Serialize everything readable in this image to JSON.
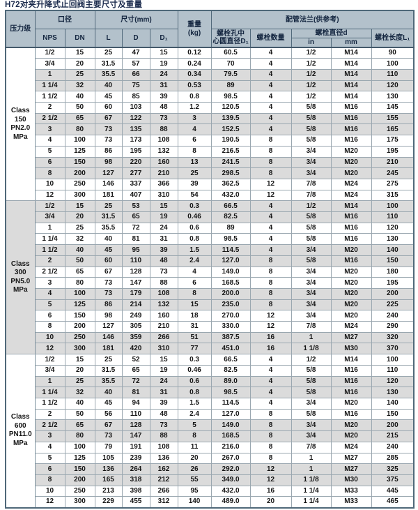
{
  "title": "H72对夹升降式止回阀主要尺寸及重量",
  "colors": {
    "title_text": "#1a2a4c",
    "header_bg": "#b3c1cb",
    "header_text": "#13253f",
    "row_stripe": "#dbdbdb",
    "row_plain": "#ffffff",
    "grid_line": "#9aa7b0",
    "outer_border": "#4f6879"
  },
  "table": {
    "header": {
      "pressure_class": "压力级",
      "bore_group": "口径",
      "nps": "NPS",
      "dn": "DN",
      "dimensions_group": "尺寸(mm)",
      "l": "L",
      "d": "D",
      "d1": "D₁",
      "weight_line1": "重量",
      "weight_line2": "(kg)",
      "flange_group": "配管法兰(供参考)",
      "bolt_circle_line1": "螺栓孔中",
      "bolt_circle_line2": "心圆直径D₁",
      "bolt_qty": "螺栓数量",
      "bolt_dia_group": "螺栓直径d",
      "unit_in": "in",
      "unit_mm": "mm",
      "bolt_length": "螺栓长度L₁"
    },
    "sections": [
      {
        "pressure_class_lines": [
          "Class",
          "150",
          "PN2.0",
          "MPa"
        ],
        "rows": [
          [
            "1/2",
            "15",
            "25",
            "47",
            "15",
            "0.12",
            "60.5",
            "4",
            "1/2",
            "M14",
            "90"
          ],
          [
            "3/4",
            "20",
            "31.5",
            "57",
            "19",
            "0.24",
            "70",
            "4",
            "1/2",
            "M14",
            "100"
          ],
          [
            "1",
            "25",
            "35.5",
            "66",
            "24",
            "0.34",
            "79.5",
            "4",
            "1/2",
            "M14",
            "110"
          ],
          [
            "1 1/4",
            "32",
            "40",
            "75",
            "31",
            "0.53",
            "89",
            "4",
            "1/2",
            "M14",
            "120"
          ],
          [
            "1 1/2",
            "40",
            "45",
            "85",
            "39",
            "0.8",
            "98.5",
            "4",
            "1/2",
            "M14",
            "130"
          ],
          [
            "2",
            "50",
            "60",
            "103",
            "48",
            "1.2",
            "120.5",
            "4",
            "5/8",
            "M16",
            "145"
          ],
          [
            "2 1/2",
            "65",
            "67",
            "122",
            "73",
            "3",
            "139.5",
            "4",
            "5/8",
            "M16",
            "155"
          ],
          [
            "3",
            "80",
            "73",
            "135",
            "88",
            "4",
            "152.5",
            "4",
            "5/8",
            "M16",
            "165"
          ],
          [
            "4",
            "100",
            "73",
            "173",
            "108",
            "6",
            "190.5",
            "8",
            "5/8",
            "M16",
            "175"
          ],
          [
            "5",
            "125",
            "86",
            "195",
            "132",
            "8",
            "216.5",
            "8",
            "3/4",
            "M20",
            "195"
          ],
          [
            "6",
            "150",
            "98",
            "220",
            "160",
            "13",
            "241.5",
            "8",
            "3/4",
            "M20",
            "210"
          ],
          [
            "8",
            "200",
            "127",
            "277",
            "210",
            "25",
            "298.5",
            "8",
            "3/4",
            "M20",
            "245"
          ],
          [
            "10",
            "250",
            "146",
            "337",
            "366",
            "39",
            "362.5",
            "12",
            "7/8",
            "M24",
            "275"
          ],
          [
            "12",
            "300",
            "181",
            "407",
            "310",
            "54",
            "432.0",
            "12",
            "7/8",
            "M24",
            "315"
          ]
        ]
      },
      {
        "pressure_class_lines": [
          "Class",
          "300",
          "PN5.0",
          "MPa"
        ],
        "rows": [
          [
            "1/2",
            "15",
            "25",
            "53",
            "15",
            "0.3",
            "66.5",
            "4",
            "1/2",
            "M14",
            "100"
          ],
          [
            "3/4",
            "20",
            "31.5",
            "65",
            "19",
            "0.46",
            "82.5",
            "4",
            "5/8",
            "M16",
            "110"
          ],
          [
            "1",
            "25",
            "35.5",
            "72",
            "24",
            "0.6",
            "89",
            "4",
            "5/8",
            "M16",
            "120"
          ],
          [
            "1 1/4",
            "32",
            "40",
            "81",
            "31",
            "0.8",
            "98.5",
            "4",
            "5/8",
            "M16",
            "130"
          ],
          [
            "1 1/2",
            "40",
            "45",
            "95",
            "39",
            "1.5",
            "114.5",
            "4",
            "3/4",
            "M20",
            "140"
          ],
          [
            "2",
            "50",
            "60",
            "110",
            "48",
            "2.4",
            "127.0",
            "8",
            "5/8",
            "M16",
            "150"
          ],
          [
            "2 1/2",
            "65",
            "67",
            "128",
            "73",
            "4",
            "149.0",
            "8",
            "3/4",
            "M20",
            "180"
          ],
          [
            "3",
            "80",
            "73",
            "147",
            "88",
            "6",
            "168.5",
            "8",
            "3/4",
            "M20",
            "195"
          ],
          [
            "4",
            "100",
            "73",
            "179",
            "108",
            "8",
            "200.0",
            "8",
            "3/4",
            "M20",
            "200"
          ],
          [
            "5",
            "125",
            "86",
            "214",
            "132",
            "15",
            "235.0",
            "8",
            "3/4",
            "M20",
            "225"
          ],
          [
            "6",
            "150",
            "98",
            "249",
            "160",
            "18",
            "270.0",
            "12",
            "3/4",
            "M20",
            "240"
          ],
          [
            "8",
            "200",
            "127",
            "305",
            "210",
            "31",
            "330.0",
            "12",
            "7/8",
            "M24",
            "290"
          ],
          [
            "10",
            "250",
            "146",
            "359",
            "266",
            "51",
            "387.5",
            "16",
            "1",
            "M27",
            "320"
          ],
          [
            "12",
            "300",
            "181",
            "420",
            "310",
            "77",
            "451.0",
            "16",
            "1 1/8",
            "M30",
            "370"
          ]
        ]
      },
      {
        "pressure_class_lines": [
          "Class",
          "600",
          "PN11.0",
          "MPa"
        ],
        "rows": [
          [
            "1/2",
            "15",
            "25",
            "52",
            "15",
            "0.3",
            "66.5",
            "4",
            "1/2",
            "M14",
            "100"
          ],
          [
            "3/4",
            "20",
            "31.5",
            "65",
            "19",
            "0.46",
            "82.5",
            "4",
            "5/8",
            "M16",
            "110"
          ],
          [
            "1",
            "25",
            "35.5",
            "72",
            "24",
            "0.6",
            "89.0",
            "4",
            "5/8",
            "M16",
            "120"
          ],
          [
            "1 1/4",
            "32",
            "40",
            "81",
            "31",
            "0.8",
            "98.5",
            "4",
            "5/8",
            "M16",
            "130"
          ],
          [
            "1 1/2",
            "40",
            "45",
            "94",
            "39",
            "1.5",
            "114.5",
            "4",
            "3/4",
            "M20",
            "140"
          ],
          [
            "2",
            "50",
            "56",
            "110",
            "48",
            "2.4",
            "127.0",
            "8",
            "5/8",
            "M16",
            "150"
          ],
          [
            "2 1/2",
            "65",
            "67",
            "128",
            "73",
            "5",
            "149.0",
            "8",
            "3/4",
            "M20",
            "200"
          ],
          [
            "3",
            "80",
            "73",
            "147",
            "88",
            "8",
            "168.5",
            "8",
            "3/4",
            "M20",
            "215"
          ],
          [
            "4",
            "100",
            "79",
            "191",
            "108",
            "11",
            "216.0",
            "8",
            "7/8",
            "M24",
            "240"
          ],
          [
            "5",
            "125",
            "105",
            "239",
            "136",
            "20",
            "267.0",
            "8",
            "1",
            "M27",
            "285"
          ],
          [
            "6",
            "150",
            "136",
            "264",
            "162",
            "26",
            "292.0",
            "12",
            "1",
            "M27",
            "325"
          ],
          [
            "8",
            "200",
            "165",
            "318",
            "212",
            "55",
            "349.0",
            "12",
            "1 1/8",
            "M30",
            "375"
          ],
          [
            "10",
            "250",
            "213",
            "398",
            "266",
            "95",
            "432.0",
            "16",
            "1 1/4",
            "M33",
            "445"
          ],
          [
            "12",
            "300",
            "229",
            "455",
            "312",
            "140",
            "489.0",
            "20",
            "1 1/4",
            "M33",
            "465"
          ]
        ]
      }
    ]
  }
}
